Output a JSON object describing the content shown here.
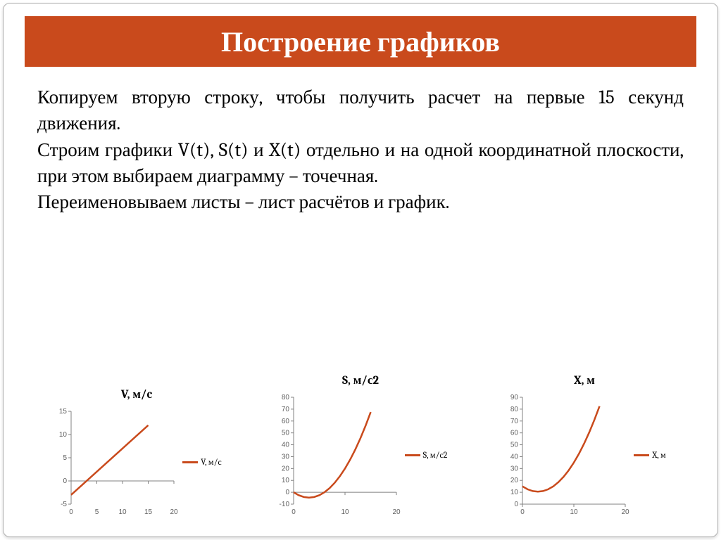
{
  "colors": {
    "accent": "#c94a1c",
    "series": "#c94a1c",
    "axis": "#808080",
    "text": "#000000",
    "background": "#ffffff"
  },
  "title": "Построение графиков",
  "paragraphs": [
    "Копируем вторую строку, чтобы получить расчет на первые 15 секунд движения.",
    "Строим графики V(t), S(t) и X(t) отдельно и на одной координатной плоскости, при этом выбираем диаграмму – точечная.",
    "Переименовываем листы – лист расчётов и график."
  ],
  "charts": [
    {
      "id": "chart-v",
      "type": "line",
      "title": "V, м/c",
      "legend": "V, м/с",
      "series_color": "#c94a1c",
      "xlim": [
        0,
        20
      ],
      "xticks": [
        0,
        5,
        10,
        15,
        20
      ],
      "ylim": [
        -5,
        15
      ],
      "yticks": [
        -5,
        0,
        5,
        10,
        15
      ],
      "points": [
        [
          0,
          -3
        ],
        [
          5,
          2
        ],
        [
          10,
          7
        ],
        [
          15,
          12
        ]
      ]
    },
    {
      "id": "chart-s",
      "type": "line",
      "title": "S, м/с2",
      "legend": "S, м/с2",
      "series_color": "#c94a1c",
      "xlim": [
        0,
        20
      ],
      "xticks": [
        0,
        10,
        20
      ],
      "ylim": [
        -10,
        80
      ],
      "yticks": [
        -10,
        0,
        10,
        20,
        30,
        40,
        50,
        60,
        70,
        80
      ],
      "points": [
        [
          0,
          0
        ],
        [
          1,
          -2.5
        ],
        [
          2,
          -4
        ],
        [
          3,
          -4.5
        ],
        [
          4,
          -4
        ],
        [
          5,
          -2.5
        ],
        [
          6,
          0
        ],
        [
          7,
          3.5
        ],
        [
          8,
          8
        ],
        [
          9,
          13.5
        ],
        [
          10,
          20
        ],
        [
          11,
          27.5
        ],
        [
          12,
          36
        ],
        [
          13,
          45.5
        ],
        [
          14,
          56
        ],
        [
          15,
          67.5
        ]
      ]
    },
    {
      "id": "chart-x",
      "type": "line",
      "title": "X, м",
      "legend": "X, м",
      "series_color": "#c94a1c",
      "xlim": [
        0,
        20
      ],
      "xticks": [
        0,
        10,
        20
      ],
      "ylim": [
        0,
        90
      ],
      "yticks": [
        0,
        10,
        20,
        30,
        40,
        50,
        60,
        70,
        80,
        90
      ],
      "points": [
        [
          0,
          15
        ],
        [
          1,
          12.5
        ],
        [
          2,
          11
        ],
        [
          3,
          10.5
        ],
        [
          4,
          11
        ],
        [
          5,
          12.5
        ],
        [
          6,
          15
        ],
        [
          7,
          18.5
        ],
        [
          8,
          23
        ],
        [
          9,
          28.5
        ],
        [
          10,
          35
        ],
        [
          11,
          42.5
        ],
        [
          12,
          51
        ],
        [
          13,
          60.5
        ],
        [
          14,
          71
        ],
        [
          15,
          82.5
        ]
      ]
    }
  ]
}
